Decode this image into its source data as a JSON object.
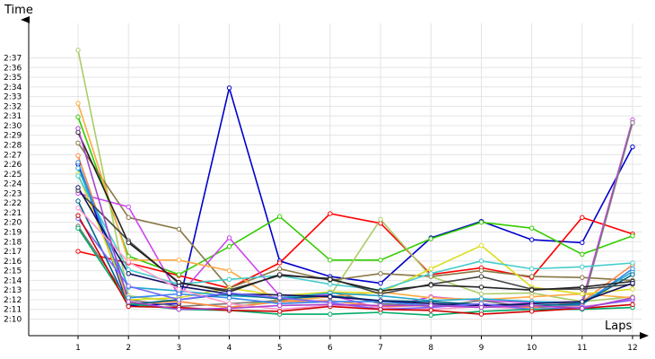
{
  "chart_data": {
    "type": "line",
    "title": "",
    "xlabel": "Laps",
    "ylabel": "Time",
    "x": [
      1,
      2,
      3,
      4,
      5,
      6,
      7,
      8,
      9,
      10,
      11,
      12
    ],
    "x_tick_labels": [
      "1",
      "2",
      "3",
      "4",
      "5",
      "6",
      "7",
      "8",
      "9",
      "10",
      "11",
      "12"
    ],
    "y_tick_labels": [
      "2:10",
      "2:11",
      "2:12",
      "2:13",
      "2:14",
      "2:15",
      "2:16",
      "2:17",
      "2:18",
      "2:19",
      "2:20",
      "2:21",
      "2:22",
      "2:23",
      "2:24",
      "2:25",
      "2:26",
      "2:27",
      "2:28",
      "2:29",
      "2:30",
      "2:31",
      "2:32",
      "2:33",
      "2:34",
      "2:35",
      "2:36",
      "2:37"
    ],
    "y_unit": "seconds",
    "ylim": [
      130,
      157
    ],
    "grid": true,
    "series": [
      {
        "color": "#0000cc",
        "values": [
          146.0,
          131.4,
          131.6,
          153.9,
          136.0,
          134.4,
          133.7,
          138.4,
          140.1,
          138.2,
          137.9,
          147.8
        ]
      },
      {
        "color": "#ff0000",
        "values": [
          137.0,
          135.8,
          134.5,
          133.2,
          135.8,
          140.9,
          139.9,
          134.6,
          135.3,
          134.3,
          140.5,
          138.8
        ]
      },
      {
        "color": "#33cc00",
        "values": [
          150.9,
          136.5,
          134.6,
          137.5,
          140.6,
          136.1,
          136.1,
          138.3,
          140.0,
          139.4,
          136.7,
          138.6
        ]
      },
      {
        "color": "#aacc66",
        "values": [
          157.8,
          132.4,
          131.8,
          131.2,
          132.0,
          132.4,
          140.3,
          134.4,
          132.6,
          132.7,
          131.8,
          132.3
        ]
      },
      {
        "color": "#887744",
        "values": [
          148.2,
          140.5,
          139.3,
          133.2,
          135.2,
          134.0,
          134.7,
          134.4,
          135.0,
          134.4,
          134.3,
          134.0
        ]
      },
      {
        "color": "#cc44ee",
        "values": [
          143.0,
          141.6,
          132.4,
          138.4,
          132.4,
          132.5,
          131.1,
          132.3,
          131.9,
          131.7,
          131.8,
          150.6
        ]
      },
      {
        "color": "#777777",
        "values": [
          139.6,
          132.0,
          131.3,
          131.6,
          131.9,
          132.8,
          131.6,
          131.3,
          131.9,
          131.2,
          131.4,
          150.3
        ]
      },
      {
        "color": "#ffaa44",
        "values": [
          152.3,
          136.1,
          136.1,
          135.0,
          131.8,
          132.3,
          132.8,
          132.2,
          132.0,
          132.3,
          132.6,
          132.2
        ]
      },
      {
        "color": "#ff8844",
        "values": [
          146.9,
          131.6,
          131.8,
          131.2,
          131.8,
          131.9,
          131.3,
          131.4,
          131.3,
          131.2,
          131.8,
          135.6
        ]
      },
      {
        "color": "#dddd22",
        "values": [
          145.0,
          132.0,
          132.2,
          133.2,
          132.4,
          132.8,
          132.7,
          135.2,
          137.6,
          133.3,
          132.6,
          133.1
        ]
      },
      {
        "color": "#44cccc",
        "values": [
          144.8,
          135.1,
          133.6,
          134.1,
          134.5,
          133.6,
          133.0,
          134.7,
          136.0,
          135.2,
          135.4,
          135.8
        ]
      },
      {
        "color": "#22aacc",
        "values": [
          145.6,
          133.3,
          132.9,
          132.4,
          132.2,
          132.7,
          132.4,
          131.9,
          132.1,
          131.8,
          131.7,
          134.9
        ]
      },
      {
        "color": "#3388ee",
        "values": [
          146.2,
          132.2,
          132.6,
          132.2,
          131.6,
          131.8,
          131.8,
          131.4,
          131.4,
          131.4,
          131.5,
          135.2
        ]
      },
      {
        "color": "#006688",
        "values": [
          142.2,
          131.5,
          132.0,
          132.6,
          132.1,
          132.4,
          131.9,
          131.8,
          131.5,
          131.4,
          131.6,
          134.6
        ]
      },
      {
        "color": "#444444",
        "values": [
          143.3,
          138.1,
          133.7,
          133.0,
          134.5,
          134.2,
          132.6,
          133.6,
          134.4,
          133.1,
          133.1,
          133.6
        ]
      },
      {
        "color": "#222222",
        "values": [
          149.3,
          137.9,
          133.8,
          132.8,
          134.6,
          134.1,
          132.9,
          133.5,
          133.3,
          133.0,
          133.3,
          133.9
        ]
      },
      {
        "color": "#111166",
        "values": [
          143.6,
          134.7,
          133.4,
          132.6,
          132.5,
          132.3,
          131.9,
          131.6,
          131.4,
          131.6,
          131.8,
          133.7
        ]
      },
      {
        "color": "#ff99cc",
        "values": [
          141.5,
          135.9,
          133.1,
          131.6,
          131.0,
          131.4,
          131.2,
          131.0,
          131.3,
          131.0,
          131.3,
          131.9
        ]
      },
      {
        "color": "#7766ff",
        "values": [
          140.4,
          133.4,
          132.0,
          132.7,
          132.2,
          131.7,
          131.0,
          131.2,
          131.6,
          131.0,
          131.2,
          132.0
        ]
      },
      {
        "color": "#00aa66",
        "values": [
          139.4,
          131.6,
          131.0,
          130.9,
          130.5,
          130.5,
          130.7,
          130.4,
          130.8,
          131.0,
          131.0,
          131.2
        ]
      },
      {
        "color": "#cc0000",
        "values": [
          140.7,
          131.3,
          131.2,
          130.9,
          130.8,
          131.3,
          131.0,
          130.9,
          130.5,
          130.8,
          131.1,
          131.5
        ]
      },
      {
        "color": "#aa44cc",
        "values": [
          149.7,
          131.8,
          131.0,
          131.1,
          131.4,
          131.5,
          131.4,
          131.4,
          131.2,
          131.4,
          131.1,
          132.2
        ]
      }
    ]
  }
}
